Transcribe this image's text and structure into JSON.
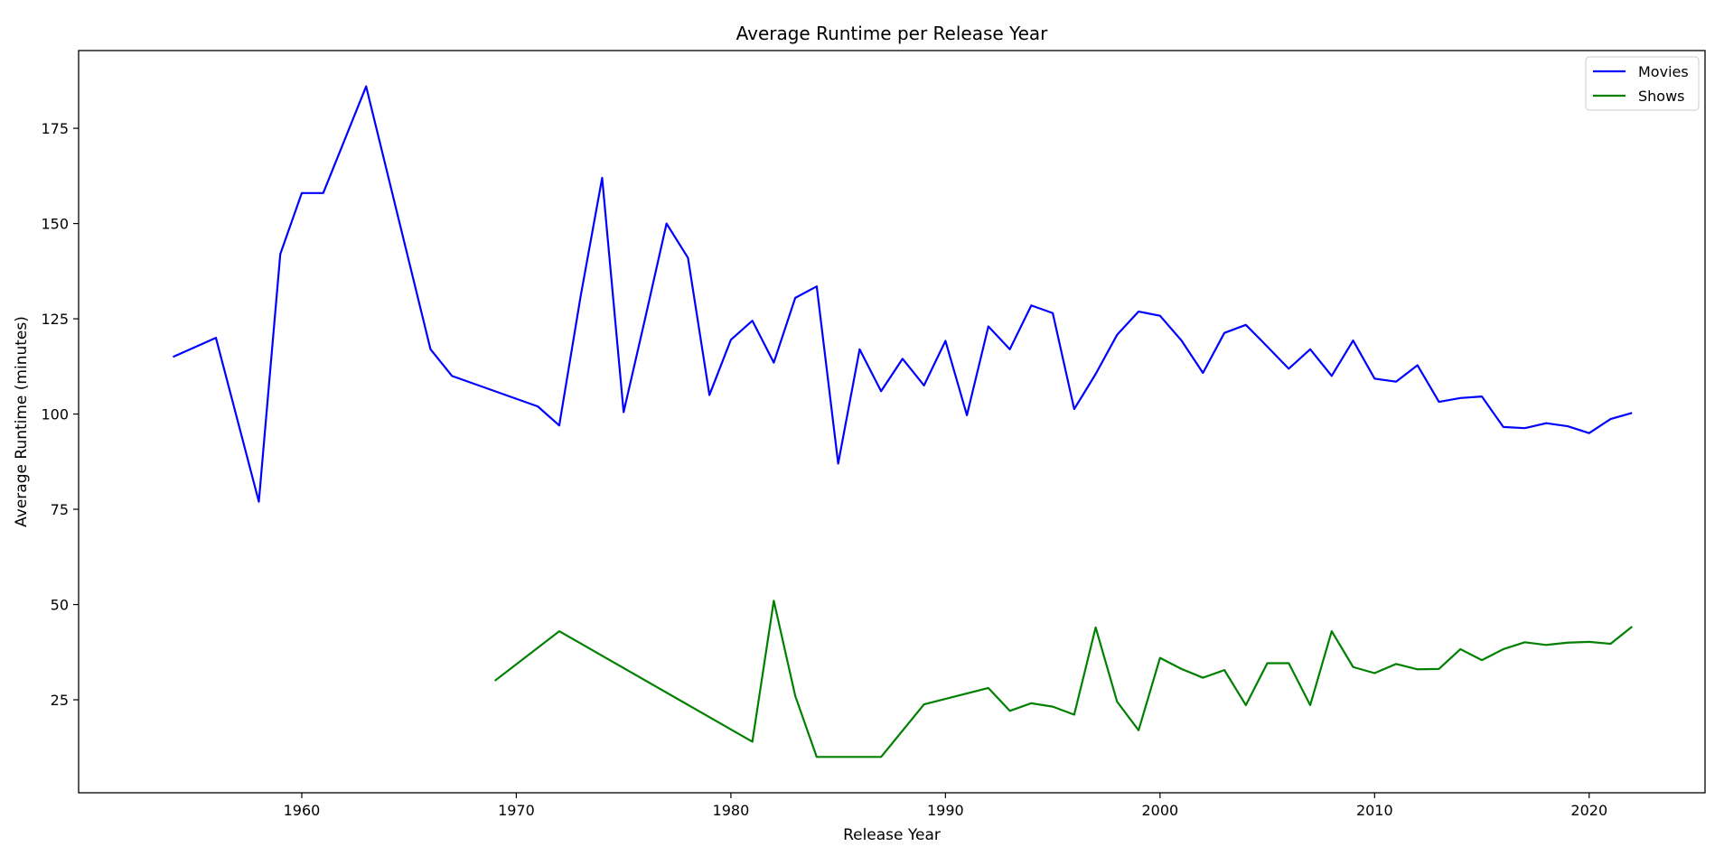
{
  "chart_data": {
    "type": "line",
    "title": "Average Runtime per Release Year",
    "xlabel": "Release Year",
    "ylabel": "Average Runtime (minutes)",
    "xlim": [
      1949.6,
      2025.4
    ],
    "ylim": [
      0.6,
      195.4
    ],
    "xticks": [
      1960,
      1970,
      1980,
      1990,
      2000,
      2010,
      2020
    ],
    "yticks": [
      25,
      50,
      75,
      100,
      125,
      150,
      175
    ],
    "grid": false,
    "legend_position": "top-right",
    "series": [
      {
        "name": "Movies",
        "color": "#0000ff",
        "x": [
          1954,
          1956,
          1958,
          1959,
          1960,
          1961,
          1963,
          1966,
          1967,
          1971,
          1972,
          1973,
          1974,
          1975,
          1976,
          1977,
          1978,
          1979,
          1980,
          1981,
          1982,
          1983,
          1984,
          1985,
          1986,
          1987,
          1988,
          1989,
          1990,
          1991,
          1992,
          1993,
          1994,
          1995,
          1996,
          1997,
          1998,
          1999,
          2000,
          2001,
          2002,
          2003,
          2004,
          2005,
          2006,
          2007,
          2008,
          2009,
          2010,
          2011,
          2012,
          2013,
          2014,
          2015,
          2016,
          2017,
          2018,
          2019,
          2020,
          2021,
          2022
        ],
        "y": [
          115,
          120,
          77,
          142,
          158,
          158,
          186,
          117,
          110,
          102,
          97,
          131,
          162,
          100.5,
          125,
          150,
          141,
          105,
          119.5,
          124.5,
          113.5,
          130.5,
          133.5,
          87,
          117,
          106,
          114.5,
          107.5,
          119.2,
          99.7,
          123,
          117,
          128.5,
          126.5,
          101.3,
          110.5,
          120.8,
          126.9,
          125.8,
          119.3,
          110.8,
          121.3,
          123.4,
          117.7,
          111.9,
          117,
          110,
          119.3,
          109.3,
          108.5,
          112.8,
          103.2,
          104.2,
          104.6,
          96.6,
          96.3,
          97.6,
          96.8,
          95,
          98.7,
          100.3
        ]
      },
      {
        "name": "Shows",
        "color": "#008000",
        "x": [
          1969,
          1972,
          1981,
          1982,
          1983,
          1984,
          1987,
          1989,
          1992,
          1993,
          1994,
          1995,
          1996,
          1997,
          1998,
          1999,
          2000,
          2001,
          2002,
          2003,
          2004,
          2005,
          2006,
          2007,
          2008,
          2009,
          2010,
          2011,
          2012,
          2013,
          2014,
          2015,
          2016,
          2017,
          2018,
          2019,
          2020,
          2021,
          2022
        ],
        "y": [
          30,
          43,
          14,
          51,
          26,
          10,
          10,
          23.8,
          28.1,
          22.1,
          24.1,
          23.2,
          21.1,
          44,
          24.5,
          17,
          36,
          33.1,
          30.8,
          32.8,
          23.6,
          34.6,
          34.6,
          23.6,
          43,
          33.6,
          32,
          34.4,
          33,
          33.1,
          38.3,
          35.4,
          38.3,
          40.1,
          39.4,
          40,
          40.2,
          39.7,
          44.2
        ]
      }
    ]
  }
}
